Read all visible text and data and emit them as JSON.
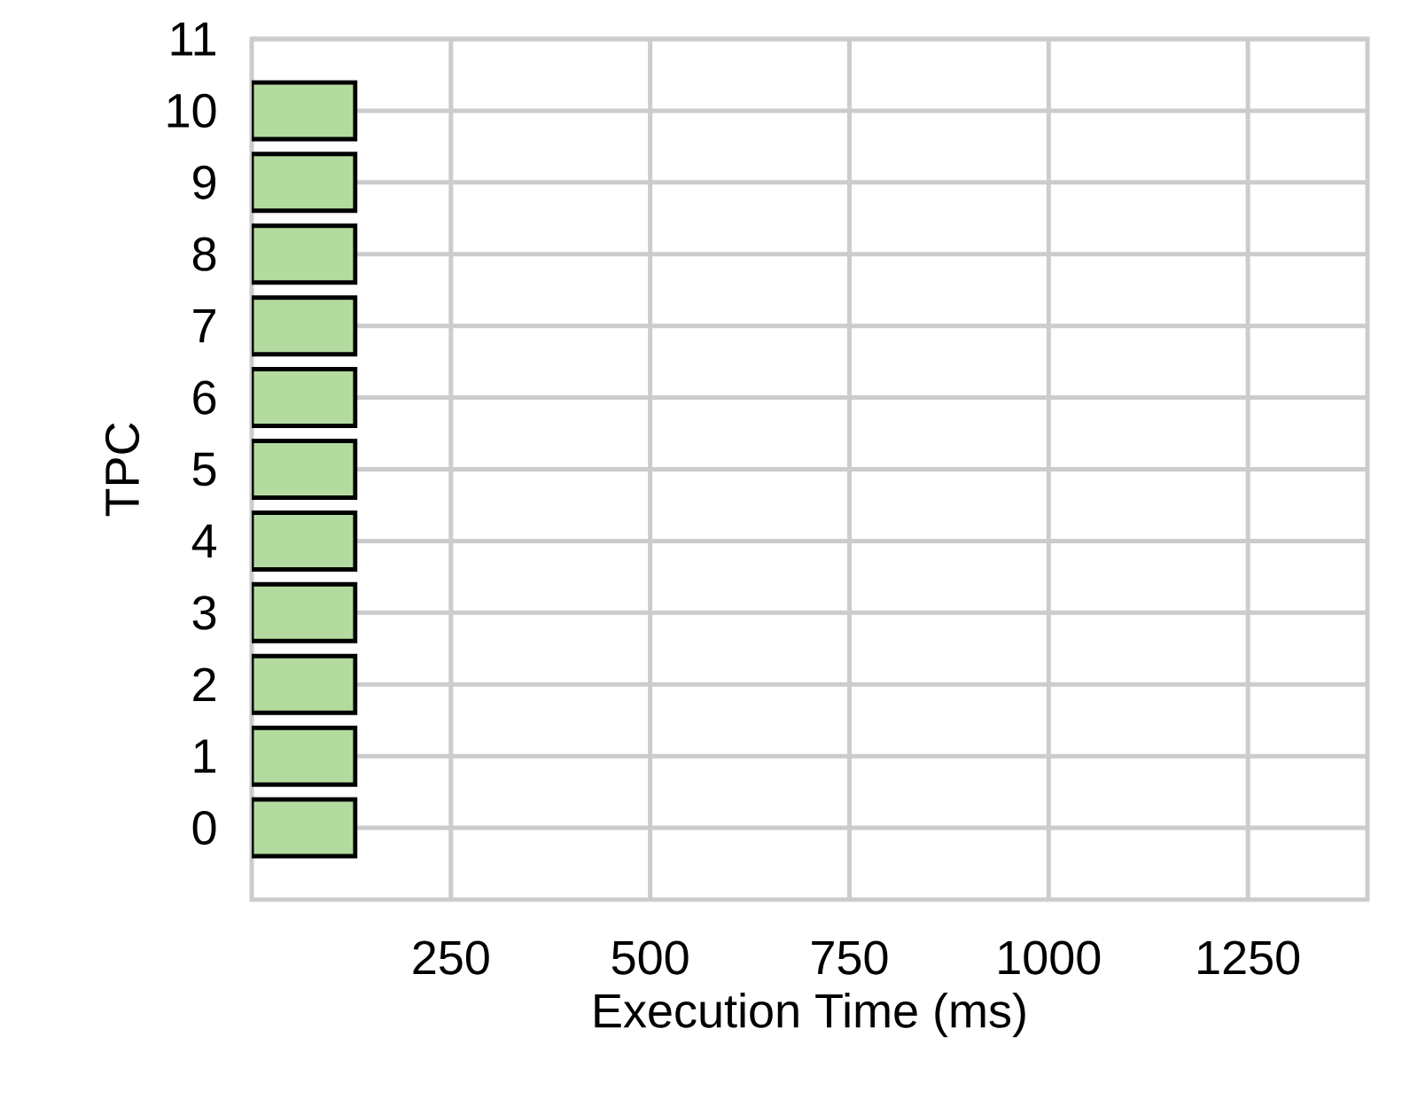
{
  "chart_data": {
    "type": "bar",
    "orientation": "horizontal",
    "xlabel": "Execution Time (ms)",
    "ylabel": "TPC",
    "categories": [
      "11",
      "10",
      "9",
      "8",
      "7",
      "6",
      "5",
      "4",
      "3",
      "2",
      "1",
      "0"
    ],
    "values": [
      null,
      130,
      130,
      130,
      130,
      130,
      130,
      130,
      130,
      130,
      130,
      130
    ],
    "color": "#b3dba0",
    "xlim": [
      0,
      1400
    ],
    "xticks": [
      250,
      500,
      750,
      1000,
      1250
    ],
    "grid": true
  }
}
